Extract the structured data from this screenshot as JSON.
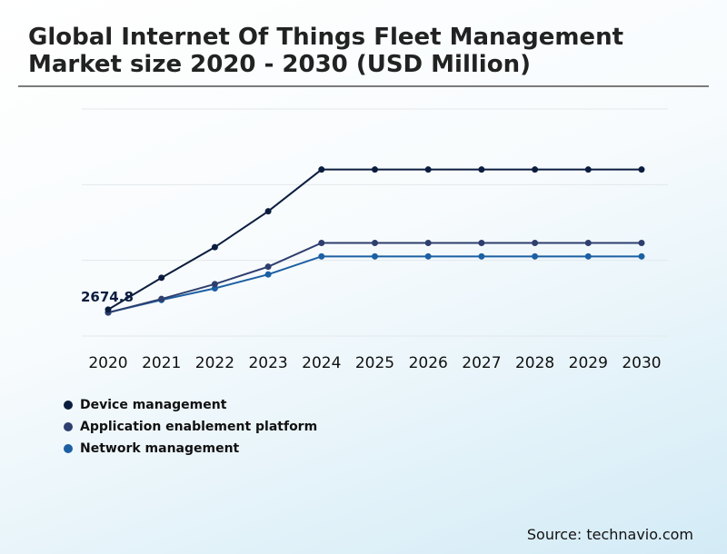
{
  "title": "Global Internet Of Things Fleet Management Market size 2020 - 2030 (USD Million)",
  "source": "Source: technavio.com",
  "chart_data": {
    "type": "line",
    "title": "Global Internet Of Things Fleet Management Market size 2020 - 2030 (USD Million)",
    "xlabel": "",
    "ylabel": "",
    "x": [
      "2020",
      "2021",
      "2022",
      "2023",
      "2024",
      "2025",
      "2026",
      "2027",
      "2028",
      "2029",
      "2030"
    ],
    "series": [
      {
        "name": "Device management",
        "color": "#0b1d3f",
        "values": [
          2674.8,
          2885,
          3087,
          3324,
          3600,
          3600,
          3600,
          3600,
          3600,
          3600,
          3600
        ]
      },
      {
        "name": "Application enablement platform",
        "color": "#2e3e6e",
        "values": [
          2655,
          2745,
          2843,
          2958,
          3115,
          3115,
          3115,
          3115,
          3115,
          3115,
          3115
        ]
      },
      {
        "name": "Network management",
        "color": "#1c5fa3",
        "values": [
          2655,
          2738,
          2815,
          2907,
          3026,
          3026,
          3026,
          3026,
          3026,
          3026,
          3026
        ]
      }
    ],
    "annotations": [
      {
        "series": 0,
        "index": 0,
        "text": "2674.8"
      }
    ],
    "ylim": [
      2500,
      4000
    ],
    "gridlines": [
      2500,
      3000,
      3500,
      4000
    ],
    "grid": true,
    "legend": "bottom-left"
  }
}
